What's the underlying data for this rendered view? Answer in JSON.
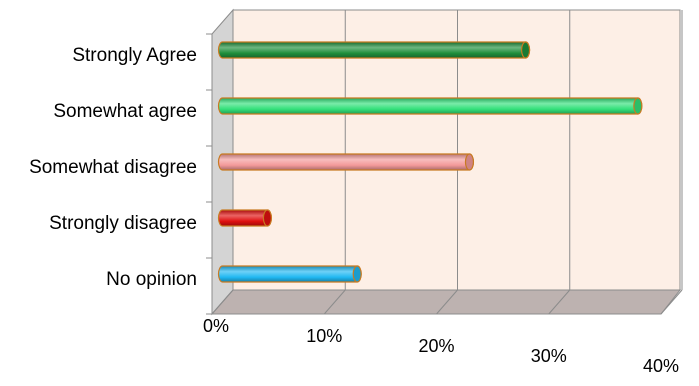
{
  "chart_data": {
    "type": "bar",
    "orientation": "horizontal",
    "style": "3d-cylinder",
    "categories": [
      "Strongly Agree",
      "Somewhat agree",
      "Somewhat disagree",
      "Strongly disagree",
      "No opinion"
    ],
    "values": [
      27,
      37,
      22,
      4,
      12
    ],
    "colors": [
      "#1f8f3c",
      "#33e07a",
      "#f39a9a",
      "#e01010",
      "#21b8f2"
    ],
    "x_ticks": [
      "0%",
      "10%",
      "20%",
      "30%",
      "40%"
    ],
    "xlim": [
      0,
      40
    ],
    "grid": true,
    "legend": "none",
    "title": "",
    "xlabel": "",
    "ylabel": ""
  }
}
